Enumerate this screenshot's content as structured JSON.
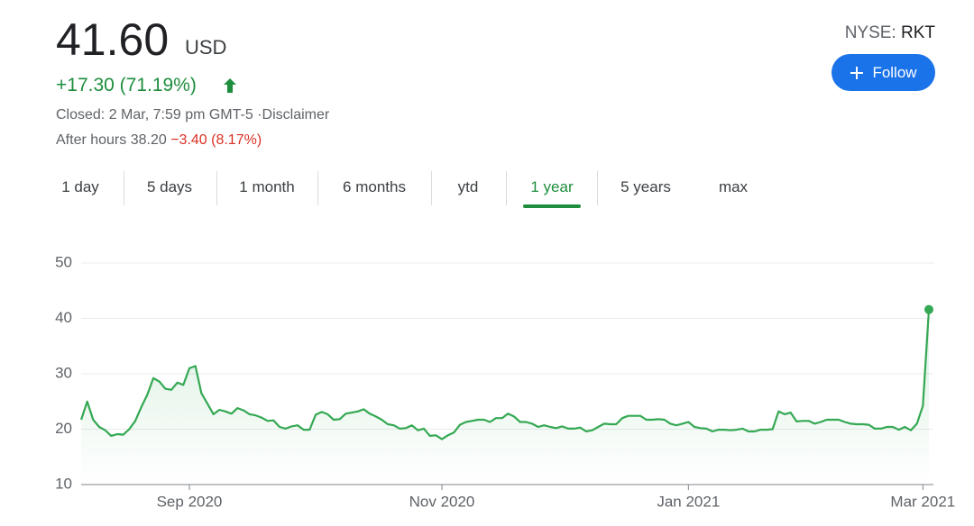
{
  "quote": {
    "price": "41.60",
    "currency": "USD",
    "change": "+17.30 (71.19%)",
    "closed": "Closed: 2 Mar, 7:59 pm GMT-5",
    "disclaimer": "·Disclaimer",
    "after_hours": "After hours 38.20",
    "after_hours_change": "−3.40 (8.17%)",
    "exchange": "NYSE:",
    "ticker": "RKT",
    "follow": "Follow"
  },
  "tabs": [
    "1 day",
    "5 days",
    "1 month",
    "6 months",
    "ytd",
    "1 year",
    "5 years",
    "max"
  ],
  "active_tab": 5,
  "chart_data": {
    "type": "line",
    "color": "#34a853",
    "values": [
      21.7,
      25,
      21.7,
      20.4,
      19.8,
      18.8,
      19.1,
      19.0,
      20,
      21.5,
      24,
      26.2,
      29.2,
      28.6,
      27.3,
      27.1,
      28.4,
      28,
      31,
      31.4,
      26.5,
      24.6,
      22.7,
      23.5,
      23.2,
      22.8,
      23.8,
      23.4,
      22.7,
      22.5,
      22.1,
      21.5,
      21.6,
      20.4,
      20.1,
      20.5,
      20.7,
      19.9,
      19.9,
      22.6,
      23.1,
      22.7,
      21.7,
      21.8,
      22.8,
      23,
      23.2,
      23.6,
      22.8,
      22.3,
      21.7,
      20.9,
      20.7,
      20.1,
      20.2,
      20.7,
      19.8,
      20.1,
      18.8,
      18.9,
      18.2,
      18.9,
      19.4,
      20.8,
      21.3,
      21.5,
      21.7,
      21.7,
      21.3,
      22,
      22,
      22.8,
      22.3,
      21.3,
      21.3,
      21,
      20.4,
      20.7,
      20.4,
      20.2,
      20.5,
      20.1,
      20.1,
      20.3,
      19.6,
      19.8,
      20.4,
      21,
      20.9,
      20.9,
      22,
      22.4,
      22.4,
      22.4,
      21.7,
      21.7,
      21.8,
      21.7,
      21,
      20.7,
      21,
      21.3,
      20.4,
      20.2,
      20.1,
      19.6,
      19.9,
      19.9,
      19.8,
      19.9,
      20.1,
      19.6,
      19.6,
      19.9,
      19.9,
      20,
      23.2,
      22.7,
      23,
      21.4,
      21.5,
      21.5,
      21,
      21.3,
      21.7,
      21.7,
      21.7,
      21.3,
      21,
      20.9,
      20.9,
      20.8,
      20.1,
      20.1,
      20.4,
      20.4,
      19.9,
      20.4,
      19.8,
      21,
      24.2,
      41.6
    ],
    "xlim": [
      0,
      141
    ],
    "xticks": [
      {
        "value": 18,
        "label": "Sep 2020"
      },
      {
        "value": 60,
        "label": "Nov 2020"
      },
      {
        "value": 101,
        "label": "Jan 2021"
      },
      {
        "value": 140,
        "label": "Mar 2021"
      }
    ],
    "ylim": [
      10,
      50
    ],
    "yticks": [
      10,
      20,
      30,
      40,
      50
    ],
    "grid": true
  }
}
